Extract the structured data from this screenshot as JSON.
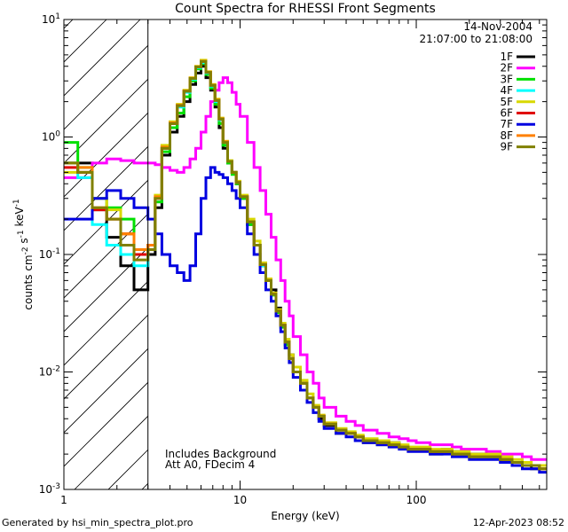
{
  "chart_data": {
    "type": "line",
    "title": "Count Spectra for RHESSI Front Segments",
    "xlabel": "Energy (keV)",
    "ylabel": "counts cm-2 s-1 keV-1",
    "x_scale": "log",
    "y_scale": "log",
    "xlim": [
      1,
      550
    ],
    "ylim": [
      0.001,
      10
    ],
    "x_tick_labels": [
      "1",
      "10",
      "100"
    ],
    "y_tick_labels": [
      "10-3",
      "10-2",
      "10-1",
      "100",
      "101"
    ],
    "date": "14-Nov-2004",
    "time_range": "21:07:00 to 21:08:00",
    "annotations": [
      "Includes Background",
      "Att A0, FDecim 4"
    ],
    "hatched_region": [
      1,
      3
    ],
    "legend_placement": "top-right",
    "grid": false,
    "series": [
      {
        "name": "1F",
        "color": "#000000"
      },
      {
        "name": "2F",
        "color": "#ff00ff"
      },
      {
        "name": "3F",
        "color": "#00e000"
      },
      {
        "name": "4F",
        "color": "#00ffff"
      },
      {
        "name": "5F",
        "color": "#d8d800"
      },
      {
        "name": "6F",
        "color": "#e00000"
      },
      {
        "name": "7F",
        "color": "#0000e0"
      },
      {
        "name": "8F",
        "color": "#ff8000"
      },
      {
        "name": "9F",
        "color": "#808000"
      }
    ],
    "energy_bins": [
      1.0,
      1.2,
      1.45,
      1.75,
      2.1,
      2.5,
      3.0,
      3.3,
      3.6,
      4.0,
      4.4,
      4.8,
      5.2,
      5.6,
      6.0,
      6.4,
      6.8,
      7.2,
      7.6,
      8.0,
      8.5,
      9.0,
      9.5,
      10,
      11,
      12,
      13,
      14,
      15,
      16,
      17,
      18,
      19,
      20,
      22,
      24,
      26,
      28,
      30,
      35,
      40,
      45,
      50,
      60,
      70,
      80,
      90,
      100,
      120,
      140,
      160,
      180,
      200,
      250,
      300,
      350,
      400,
      450,
      500,
      550
    ],
    "values": {
      "1F": [
        0.6,
        0.6,
        0.24,
        0.14,
        0.08,
        0.05,
        0.1,
        0.25,
        0.7,
        1.1,
        1.5,
        2.0,
        2.8,
        3.5,
        4.0,
        3.2,
        2.5,
        1.8,
        1.2,
        0.8,
        0.6,
        0.5,
        0.4,
        0.3,
        0.18,
        0.12,
        0.08,
        0.06,
        0.05,
        0.035,
        0.025,
        0.018,
        0.014,
        0.011,
        0.008,
        0.006,
        0.005,
        0.004,
        0.0035,
        0.003,
        0.003,
        0.0028,
        0.0025,
        0.0024,
        0.0025,
        0.0023,
        0.0022,
        0.0022,
        0.002,
        0.0022,
        0.0021,
        0.002,
        0.002,
        0.0019,
        0.0018,
        0.0017,
        0.0016,
        0.0015,
        0.0015
      ],
      "2F": [
        0.45,
        0.45,
        0.6,
        0.65,
        0.63,
        0.6,
        0.6,
        0.58,
        0.55,
        0.52,
        0.5,
        0.55,
        0.65,
        0.8,
        1.1,
        1.5,
        2.0,
        2.5,
        2.9,
        3.2,
        2.9,
        2.4,
        1.9,
        1.5,
        0.9,
        0.55,
        0.35,
        0.22,
        0.14,
        0.09,
        0.06,
        0.04,
        0.03,
        0.02,
        0.014,
        0.01,
        0.008,
        0.006,
        0.005,
        0.0042,
        0.0038,
        0.0035,
        0.0032,
        0.003,
        0.0028,
        0.0027,
        0.0026,
        0.0025,
        0.0024,
        0.0024,
        0.0023,
        0.0022,
        0.0022,
        0.0021,
        0.002,
        0.002,
        0.0019,
        0.0018,
        0.0018
      ],
      "3F": [
        0.9,
        0.55,
        0.3,
        0.25,
        0.2,
        0.1,
        0.11,
        0.28,
        0.75,
        1.2,
        1.6,
        2.2,
        3.0,
        3.8,
        4.2,
        3.4,
        2.6,
        1.9,
        1.3,
        0.85,
        0.6,
        0.48,
        0.4,
        0.3,
        0.18,
        0.12,
        0.08,
        0.06,
        0.045,
        0.032,
        0.024,
        0.017,
        0.013,
        0.01,
        0.008,
        0.006,
        0.005,
        0.0042,
        0.0036,
        0.0032,
        0.003,
        0.0028,
        0.0026,
        0.0025,
        0.0024,
        0.0023,
        0.0022,
        0.0022,
        0.0021,
        0.0021,
        0.002,
        0.002,
        0.0019,
        0.0019,
        0.0018,
        0.0017,
        0.0016,
        0.0016,
        0.0015
      ],
      "4F": [
        0.6,
        0.45,
        0.18,
        0.12,
        0.1,
        0.08,
        0.11,
        0.3,
        0.8,
        1.3,
        1.8,
        2.4,
        3.1,
        3.9,
        4.3,
        3.5,
        2.7,
        2.0,
        1.4,
        0.9,
        0.62,
        0.5,
        0.41,
        0.31,
        0.19,
        0.12,
        0.08,
        0.06,
        0.046,
        0.033,
        0.025,
        0.018,
        0.013,
        0.01,
        0.008,
        0.006,
        0.005,
        0.0042,
        0.0036,
        0.0032,
        0.003,
        0.0028,
        0.0026,
        0.0025,
        0.0024,
        0.0023,
        0.0022,
        0.0022,
        0.0021,
        0.0021,
        0.002,
        0.002,
        0.0019,
        0.0019,
        0.0018,
        0.0017,
        0.0016,
        0.0016,
        0.0015
      ],
      "5F": [
        0.5,
        0.5,
        0.3,
        0.24,
        0.15,
        0.1,
        0.12,
        0.32,
        0.85,
        1.35,
        1.9,
        2.5,
        3.2,
        4.0,
        4.5,
        3.6,
        2.8,
        2.1,
        1.45,
        0.92,
        0.63,
        0.5,
        0.42,
        0.32,
        0.2,
        0.13,
        0.085,
        0.062,
        0.047,
        0.034,
        0.026,
        0.019,
        0.014,
        0.011,
        0.0085,
        0.0065,
        0.0052,
        0.0043,
        0.0037,
        0.0033,
        0.0031,
        0.0029,
        0.0027,
        0.0026,
        0.0025,
        0.0024,
        0.0023,
        0.0023,
        0.0022,
        0.0022,
        0.0021,
        0.0021,
        0.002,
        0.002,
        0.0019,
        0.0018,
        0.0017,
        0.0016,
        0.0016
      ],
      "6F": [
        0.55,
        0.5,
        0.24,
        0.2,
        0.15,
        0.1,
        0.12,
        0.3,
        0.8,
        1.3,
        1.85,
        2.45,
        3.15,
        3.95,
        4.4,
        3.55,
        2.75,
        2.05,
        1.42,
        0.9,
        0.62,
        0.5,
        0.41,
        0.31,
        0.19,
        0.12,
        0.082,
        0.06,
        0.046,
        0.033,
        0.025,
        0.018,
        0.013,
        0.01,
        0.008,
        0.006,
        0.005,
        0.0042,
        0.0036,
        0.0032,
        0.003,
        0.0028,
        0.0026,
        0.0025,
        0.0024,
        0.0023,
        0.0022,
        0.0022,
        0.0021,
        0.0021,
        0.002,
        0.002,
        0.0019,
        0.0019,
        0.0018,
        0.0017,
        0.0016,
        0.0016,
        0.0015
      ],
      "7F": [
        0.2,
        0.2,
        0.3,
        0.35,
        0.3,
        0.25,
        0.2,
        0.15,
        0.1,
        0.08,
        0.07,
        0.06,
        0.08,
        0.15,
        0.3,
        0.45,
        0.55,
        0.5,
        0.48,
        0.45,
        0.4,
        0.35,
        0.3,
        0.25,
        0.15,
        0.1,
        0.07,
        0.05,
        0.04,
        0.03,
        0.022,
        0.016,
        0.012,
        0.009,
        0.007,
        0.0055,
        0.0045,
        0.0038,
        0.0033,
        0.003,
        0.0028,
        0.0026,
        0.0025,
        0.0024,
        0.0023,
        0.0022,
        0.0021,
        0.0021,
        0.002,
        0.002,
        0.0019,
        0.0019,
        0.0018,
        0.0018,
        0.0017,
        0.0016,
        0.0015,
        0.0015,
        0.0014
      ],
      "8F": [
        0.6,
        0.55,
        0.25,
        0.2,
        0.15,
        0.11,
        0.12,
        0.31,
        0.82,
        1.32,
        1.87,
        2.47,
        3.17,
        3.97,
        4.42,
        3.57,
        2.77,
        2.07,
        1.43,
        0.91,
        0.62,
        0.5,
        0.41,
        0.31,
        0.19,
        0.12,
        0.082,
        0.06,
        0.046,
        0.033,
        0.025,
        0.018,
        0.013,
        0.01,
        0.008,
        0.006,
        0.005,
        0.0042,
        0.0036,
        0.0032,
        0.003,
        0.0028,
        0.0026,
        0.0025,
        0.0024,
        0.0023,
        0.0022,
        0.0022,
        0.0021,
        0.0021,
        0.002,
        0.002,
        0.0019,
        0.0019,
        0.0018,
        0.0017,
        0.0016,
        0.0016,
        0.0015
      ],
      "9F": [
        0.6,
        0.5,
        0.25,
        0.2,
        0.12,
        0.09,
        0.11,
        0.3,
        0.8,
        1.3,
        1.85,
        2.45,
        3.15,
        3.95,
        4.4,
        3.55,
        2.75,
        2.05,
        1.42,
        0.9,
        0.62,
        0.5,
        0.41,
        0.31,
        0.19,
        0.12,
        0.082,
        0.06,
        0.046,
        0.033,
        0.025,
        0.018,
        0.013,
        0.01,
        0.008,
        0.006,
        0.005,
        0.0042,
        0.0036,
        0.0032,
        0.003,
        0.0028,
        0.0026,
        0.0025,
        0.0024,
        0.0023,
        0.0022,
        0.0022,
        0.0021,
        0.0021,
        0.002,
        0.002,
        0.0019,
        0.0019,
        0.0018,
        0.0017,
        0.0016,
        0.0016,
        0.0015
      ]
    }
  },
  "footer": {
    "left": "Generated by hsi_min_spectra_plot.pro",
    "right": "12-Apr-2023 08:52"
  }
}
